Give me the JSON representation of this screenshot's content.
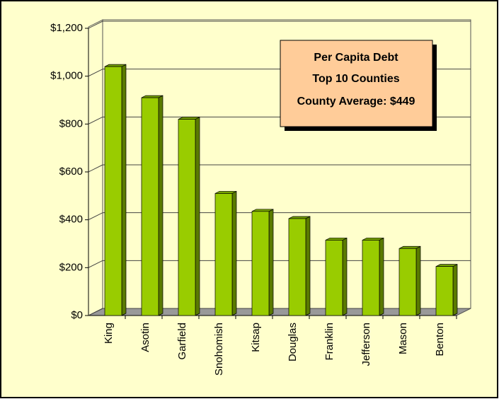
{
  "chart_data": {
    "type": "bar",
    "title": "Per Capita Debt",
    "subtitle": "Top 10 Counties",
    "annotation": "County Average: $449",
    "categories": [
      "King",
      "Asotin",
      "Garfield",
      "Snohomish",
      "Kitsap",
      "Douglas",
      "Franklin",
      "Jefferson",
      "Mason",
      "Benton"
    ],
    "values": [
      1040,
      910,
      820,
      510,
      435,
      405,
      315,
      315,
      280,
      205
    ],
    "color": "#99cc00",
    "ylim": [
      0,
      1200
    ],
    "yticks": [
      {
        "value": 0,
        "label": "$0"
      },
      {
        "value": 200,
        "label": "$200"
      },
      {
        "value": 400,
        "label": "$400"
      },
      {
        "value": 600,
        "label": "$600"
      },
      {
        "value": 800,
        "label": "$800"
      },
      {
        "value": 1000,
        "label": "$1,000"
      },
      {
        "value": 1200,
        "label": "$1,200"
      }
    ],
    "grid": true
  }
}
